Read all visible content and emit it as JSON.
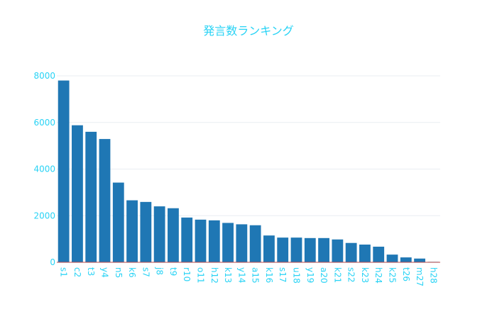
{
  "colors": {
    "bar": "#1f77b4",
    "text": "#29d3f5",
    "grid": "#e9eef2",
    "axis": "#b94a4a"
  },
  "chart_data": {
    "type": "bar",
    "title": "発言数ランキング",
    "xlabel": "",
    "ylabel": "",
    "categories": [
      "s1",
      "c2",
      "t3",
      "y4",
      "n5",
      "k6",
      "s7",
      "j8",
      "t9",
      "r10",
      "o11",
      "h12",
      "k13",
      "y14",
      "a15",
      "k16",
      "s17",
      "u18",
      "y19",
      "a20",
      "k21",
      "s22",
      "k23",
      "h24",
      "k25",
      "t26",
      "m27",
      "h28"
    ],
    "values": [
      7800,
      5880,
      5600,
      5290,
      3420,
      2660,
      2590,
      2400,
      2320,
      1920,
      1830,
      1800,
      1690,
      1630,
      1590,
      1150,
      1060,
      1060,
      1040,
      1040,
      980,
      830,
      760,
      670,
      330,
      210,
      160,
      20
    ],
    "ylim": [
      0,
      8000
    ],
    "yticks": [
      0,
      2000,
      4000,
      6000,
      8000
    ],
    "ytick_labels": [
      "0",
      "2000",
      "4000",
      "6000",
      "8000"
    ],
    "grid": true,
    "legend": "none"
  }
}
